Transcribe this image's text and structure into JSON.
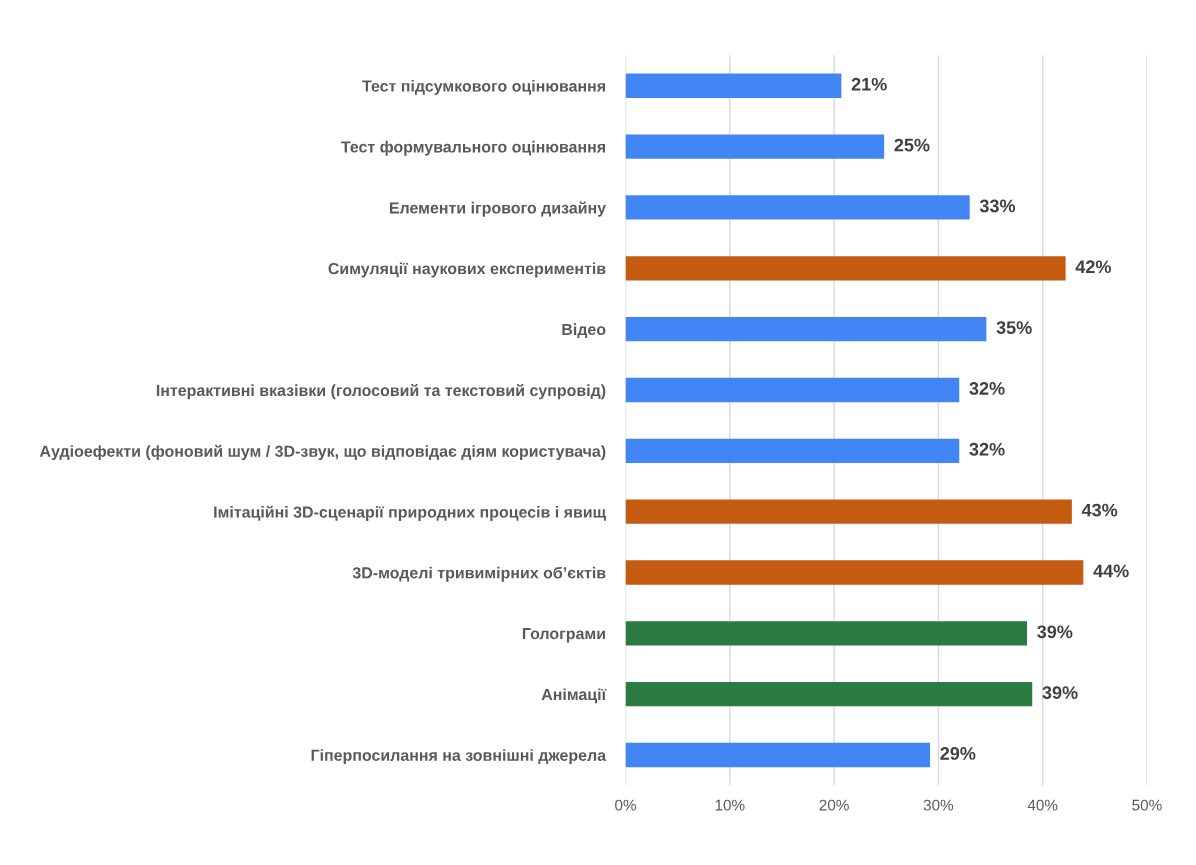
{
  "chart_data": {
    "type": "bar",
    "orientation": "horizontal",
    "categories": [
      "Тест підсумкового оцінювання",
      "Тест формувального оцінювання",
      "Елементи ігрового дизайну",
      "Симуляції наукових експериментів",
      "Відео",
      "Інтерактивні вказівки (голосовий та текстовий супровід)",
      "Аудіоефекти (фоновий шум / 3D-звук, що відповідає діям користувача)",
      "Імітаційні 3D-сценарії природних процесів і явищ",
      "3D-моделі тривимірних об’єктів",
      "Голограми",
      "Анімації",
      "Гіперпосилання на зовнішні джерела"
    ],
    "values": [
      20.7,
      24.8,
      33.0,
      42.2,
      34.6,
      32.0,
      32.0,
      42.8,
      43.9,
      38.5,
      39.0,
      29.2
    ],
    "value_labels": [
      "21%",
      "25%",
      "33%",
      "42%",
      "35%",
      "32%",
      "32%",
      "43%",
      "44%",
      "39%",
      "39%",
      "29%"
    ],
    "colors": [
      "#4285f4",
      "#4285f4",
      "#4285f4",
      "#c55a11",
      "#4285f4",
      "#4285f4",
      "#4285f4",
      "#c55a11",
      "#c55a11",
      "#2b7a3f",
      "#2b7a3f",
      "#4285f4"
    ],
    "xlim": [
      0,
      50
    ],
    "xticks": [
      {
        "value": 0,
        "label": "0%"
      },
      {
        "value": 10,
        "label": "10%"
      },
      {
        "value": 20,
        "label": "20%"
      },
      {
        "value": 30,
        "label": "30%"
      },
      {
        "value": 40,
        "label": "40%"
      },
      {
        "value": 50,
        "label": "50%"
      }
    ],
    "grid": "x",
    "legend": false
  }
}
